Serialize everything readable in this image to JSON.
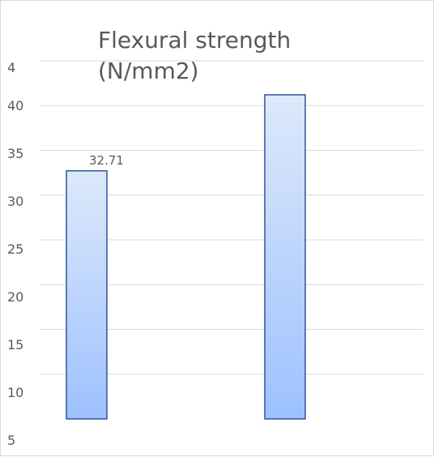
{
  "chart_data": {
    "type": "bar",
    "title_lines": [
      "Flexural strength",
      "(N/mm2)"
    ],
    "categories": [
      "",
      ""
    ],
    "series": [
      {
        "values": [
          32.71,
          41.2
        ],
        "data_labels": [
          "32.71",
          ""
        ]
      }
    ],
    "y_tick_labels": [
      "5",
      "10",
      "15",
      "20",
      "25",
      "30",
      "35",
      "40",
      "4"
    ],
    "ylim": [
      5,
      45
    ],
    "grid": true,
    "legend": "none",
    "bar_fill": {
      "top": "#dde9fb",
      "bottom": "#9dc1ff"
    },
    "bar_stroke": "#2f5597"
  }
}
